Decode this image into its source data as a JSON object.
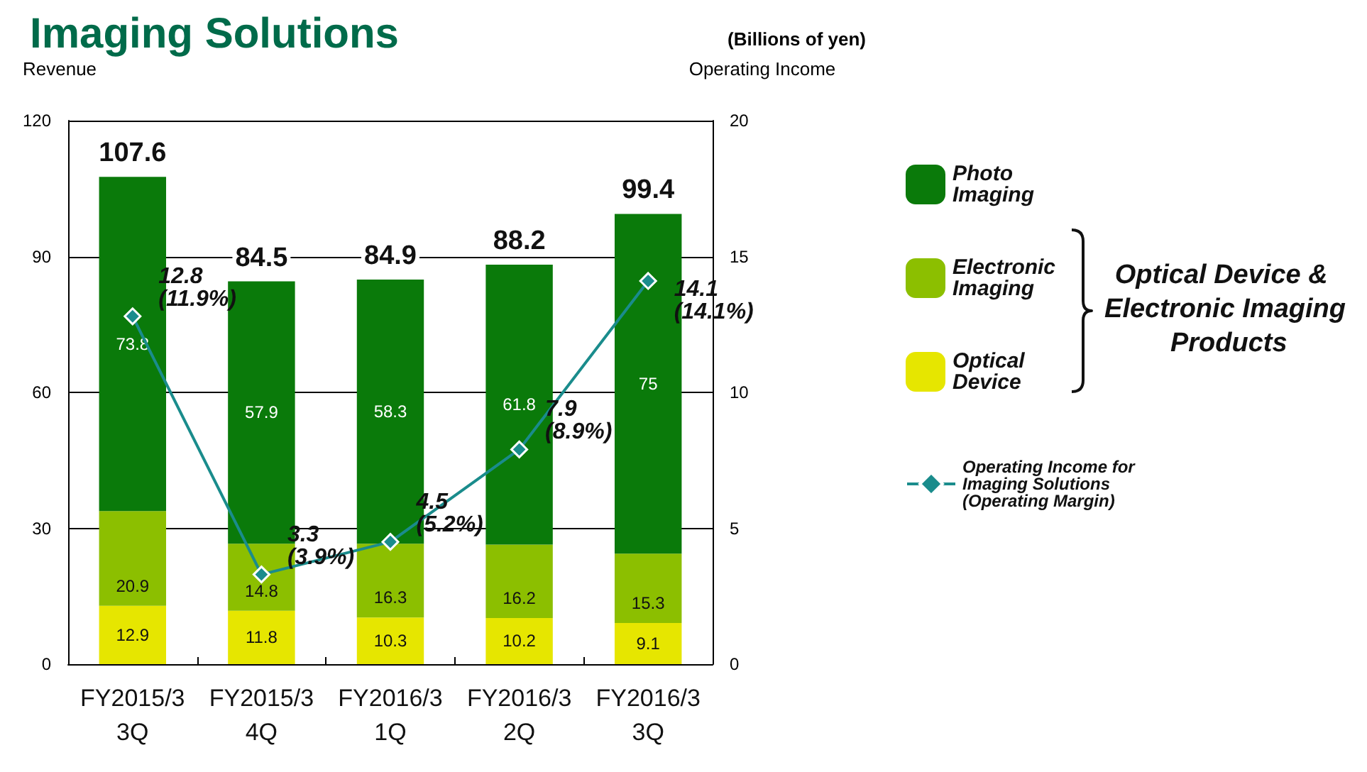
{
  "chart_data": {
    "type": "bar",
    "title": "Imaging Solutions",
    "subtitle": "(Billions of yen)",
    "ylabel": "Revenue",
    "y2label": "Operating Income",
    "categories": [
      "FY2015/3\n3Q",
      "FY2015/3\n4Q",
      "FY2016/3\n1Q",
      "FY2016/3\n2Q",
      "FY2016/3\n3Q"
    ],
    "stacked": true,
    "data_labels": true,
    "grid": "y",
    "legend": "right",
    "series": [
      {
        "name": "Optical Device",
        "color": "#e6e600",
        "values": [
          12.9,
          11.8,
          10.3,
          10.2,
          9.1
        ]
      },
      {
        "name": "Electronic Imaging",
        "color": "#8cbf00",
        "values": [
          20.9,
          14.8,
          16.3,
          16.2,
          15.3
        ]
      },
      {
        "name": "Photo Imaging",
        "color": "#0a7a0a",
        "values": [
          73.8,
          57.9,
          58.3,
          61.8,
          75.0
        ]
      },
      {
        "name": "Operating Income for Imaging Solutions (Operating Margin)",
        "type": "line",
        "axis": "y2",
        "color": "#1a8c8c",
        "marker": "diamond",
        "values": [
          12.8,
          3.3,
          4.5,
          7.9,
          14.1
        ],
        "value_labels": [
          "12.8\n(11.9%)",
          "3.3\n(3.9%)",
          "4.5\n(5.2%)",
          "7.9\n(8.9%)",
          "14.1\n(14.1%)"
        ]
      }
    ],
    "totals": [
      "107.6",
      "84.5",
      "84.9",
      "88.2",
      "99.4"
    ],
    "ylim": [
      0,
      120
    ],
    "yticks": [
      0,
      30,
      60,
      90,
      120
    ],
    "y2lim": [
      0,
      20
    ],
    "y2ticks": [
      0,
      5,
      10,
      15,
      20
    ],
    "annotations": [
      "Optical Device & Electronic Imaging Products"
    ]
  }
}
